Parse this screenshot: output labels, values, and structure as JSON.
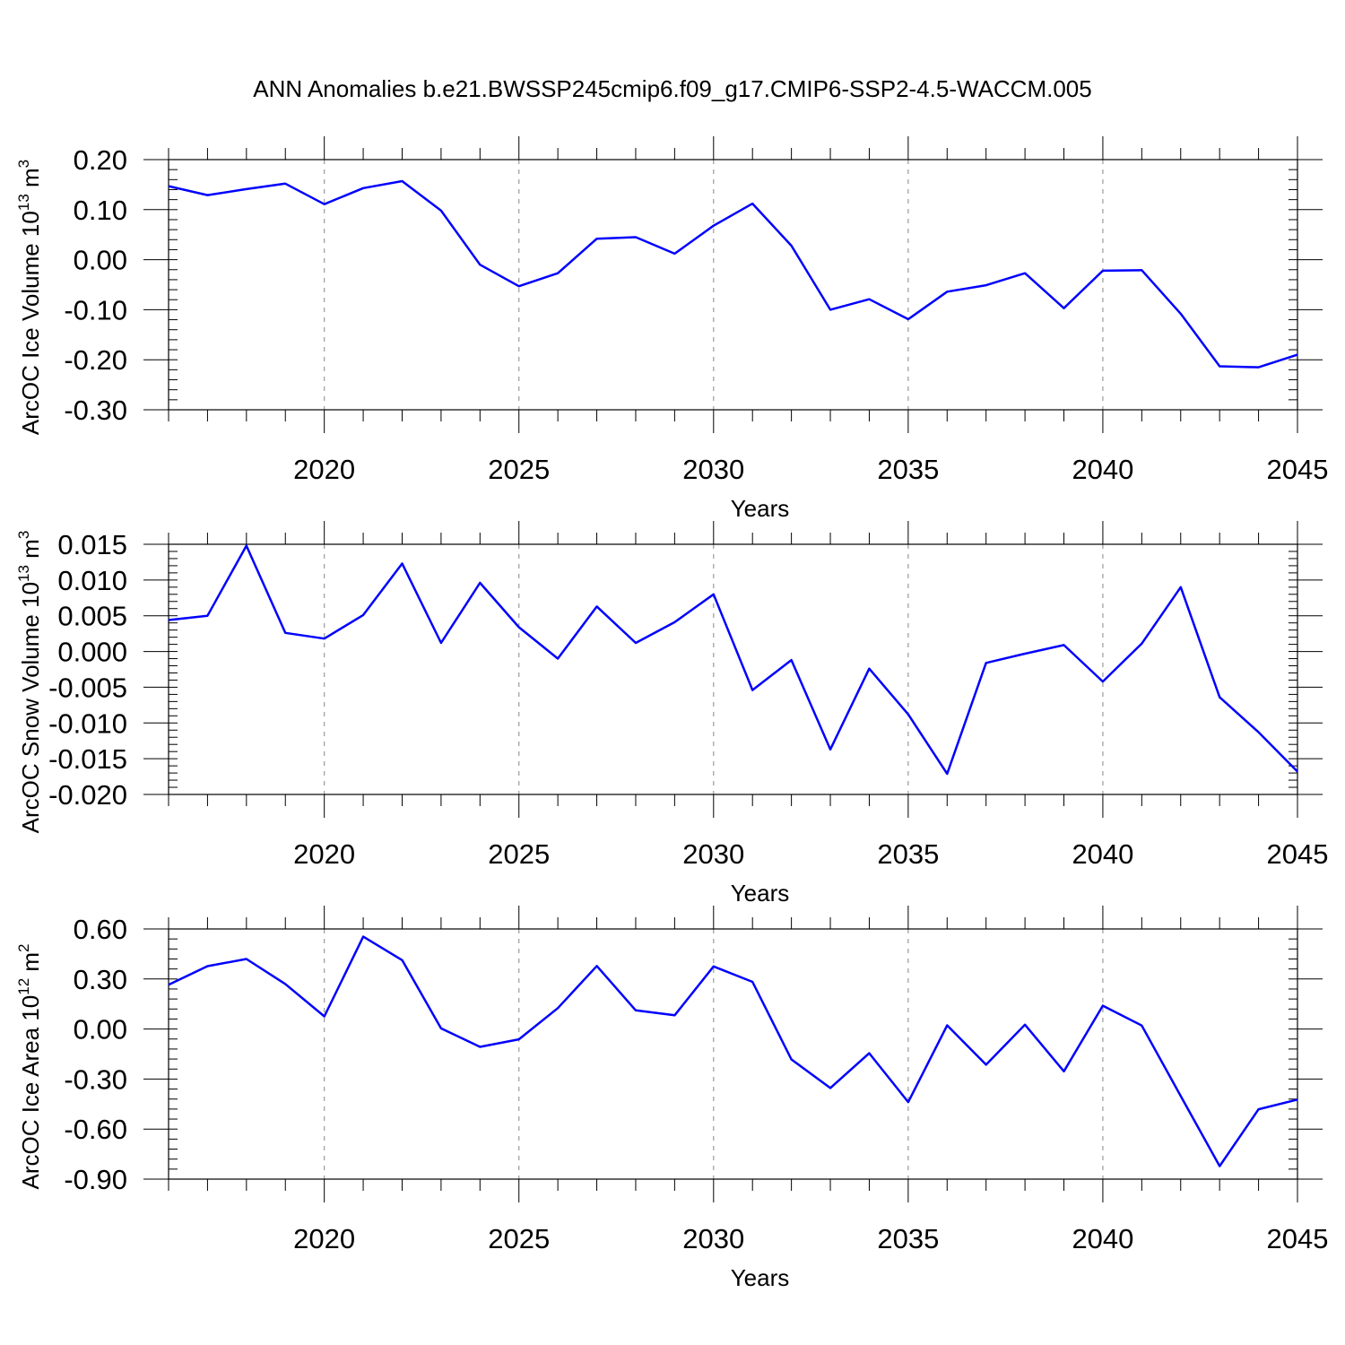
{
  "figure": {
    "title": "ANN Anomalies b.e21.BWSSP245cmip6.f09_g17.CMIP6-SSP2-4.5-WACCM.005",
    "line_color": "#0000ff",
    "grid_color": "#9a9a9a"
  },
  "chart_data": [
    {
      "type": "line",
      "title": "",
      "xlabel": "Years",
      "ylabel_main": "ArcOC Ice Volume 10",
      "ylabel_sup": "13",
      "ylabel_unit": " m",
      "ylabel_unit_sup": "3",
      "xlim": [
        2016,
        2045
      ],
      "ylim": [
        -0.3,
        0.2
      ],
      "xticks": [
        2020,
        2025,
        2030,
        2035,
        2040,
        2045
      ],
      "xtick_labels": [
        "2020",
        "2025",
        "2030",
        "2035",
        "2040",
        "2045"
      ],
      "yticks": [
        0.2,
        0.1,
        0.0,
        -0.1,
        -0.2,
        -0.3
      ],
      "ytick_labels": [
        "0.20",
        "0.10",
        "0.00",
        "-0.10",
        "-0.20",
        "-0.30"
      ],
      "yminor_step": 0.02,
      "x_grid": true,
      "series": [
        {
          "x": [
            2016,
            2017,
            2018,
            2019,
            2020,
            2021,
            2022,
            2023,
            2024,
            2025,
            2026,
            2027,
            2028,
            2029,
            2030,
            2031,
            2032,
            2033,
            2034,
            2035,
            2036,
            2037,
            2038,
            2039,
            2040,
            2041,
            2042,
            2043,
            2044,
            2045
          ],
          "values": [
            0.147,
            0.129,
            0.141,
            0.152,
            0.111,
            0.143,
            0.157,
            0.098,
            -0.01,
            -0.053,
            -0.027,
            0.042,
            0.045,
            0.012,
            0.068,
            0.112,
            0.028,
            -0.1,
            -0.079,
            -0.119,
            -0.064,
            -0.051,
            -0.027,
            -0.097,
            -0.022,
            -0.021,
            -0.108,
            -0.213,
            -0.215,
            -0.19
          ]
        }
      ]
    },
    {
      "type": "line",
      "title": "",
      "xlabel": "Years",
      "ylabel_main": "ArcOC Snow Volume 10",
      "ylabel_sup": "13",
      "ylabel_unit": " m",
      "ylabel_unit_sup": "3",
      "xlim": [
        2016,
        2045
      ],
      "ylim": [
        -0.02,
        0.015
      ],
      "xticks": [
        2020,
        2025,
        2030,
        2035,
        2040,
        2045
      ],
      "xtick_labels": [
        "2020",
        "2025",
        "2030",
        "2035",
        "2040",
        "2045"
      ],
      "yticks": [
        0.015,
        0.01,
        0.005,
        0.0,
        -0.005,
        -0.01,
        -0.015,
        -0.02
      ],
      "ytick_labels": [
        "0.015",
        "0.010",
        "0.005",
        "0.000",
        "-0.005",
        "-0.010",
        "-0.015",
        "-0.020"
      ],
      "yminor_step": 0.001,
      "x_grid": true,
      "series": [
        {
          "x": [
            2016,
            2017,
            2018,
            2019,
            2020,
            2021,
            2022,
            2023,
            2024,
            2025,
            2026,
            2027,
            2028,
            2029,
            2030,
            2031,
            2032,
            2033,
            2034,
            2035,
            2036,
            2037,
            2038,
            2039,
            2040,
            2041,
            2042,
            2043,
            2044,
            2045
          ],
          "values": [
            0.0044,
            0.005,
            0.0148,
            0.0026,
            0.0018,
            0.0051,
            0.0123,
            0.0012,
            0.0096,
            0.0034,
            -0.001,
            0.0063,
            0.0012,
            0.0041,
            0.008,
            -0.0054,
            -0.0012,
            -0.0137,
            -0.0024,
            -0.0088,
            -0.0171,
            -0.0016,
            -0.0003,
            0.0009,
            -0.0042,
            0.0011,
            0.009,
            -0.0064,
            -0.0113,
            -0.0168
          ]
        }
      ]
    },
    {
      "type": "line",
      "title": "",
      "xlabel": "Years",
      "ylabel_main": "ArcOC Ice Area 10",
      "ylabel_sup": "12",
      "ylabel_unit": " m",
      "ylabel_unit_sup": "2",
      "xlim": [
        2016,
        2045
      ],
      "ylim": [
        -0.9,
        0.6
      ],
      "xticks": [
        2020,
        2025,
        2030,
        2035,
        2040,
        2045
      ],
      "xtick_labels": [
        "2020",
        "2025",
        "2030",
        "2035",
        "2040",
        "2045"
      ],
      "yticks": [
        0.6,
        0.3,
        0.0,
        -0.3,
        -0.6,
        -0.9
      ],
      "ytick_labels": [
        "0.60",
        "0.30",
        "0.00",
        "-0.30",
        "-0.60",
        "-0.90"
      ],
      "yminor_step": 0.06,
      "x_grid": true,
      "series": [
        {
          "x": [
            2016,
            2017,
            2018,
            2019,
            2020,
            2021,
            2022,
            2023,
            2024,
            2025,
            2026,
            2027,
            2028,
            2029,
            2030,
            2031,
            2032,
            2033,
            2034,
            2035,
            2036,
            2037,
            2038,
            2039,
            2040,
            2041,
            2042,
            2043,
            2044,
            2045
          ],
          "values": [
            0.265,
            0.377,
            0.42,
            0.27,
            0.076,
            0.554,
            0.413,
            0.004,
            -0.107,
            -0.062,
            0.125,
            0.378,
            0.112,
            0.082,
            0.375,
            0.283,
            -0.182,
            -0.354,
            -0.145,
            -0.438,
            0.022,
            -0.214,
            0.026,
            -0.254,
            0.14,
            0.021,
            -0.402,
            -0.822,
            -0.481,
            -0.423
          ]
        }
      ]
    }
  ]
}
